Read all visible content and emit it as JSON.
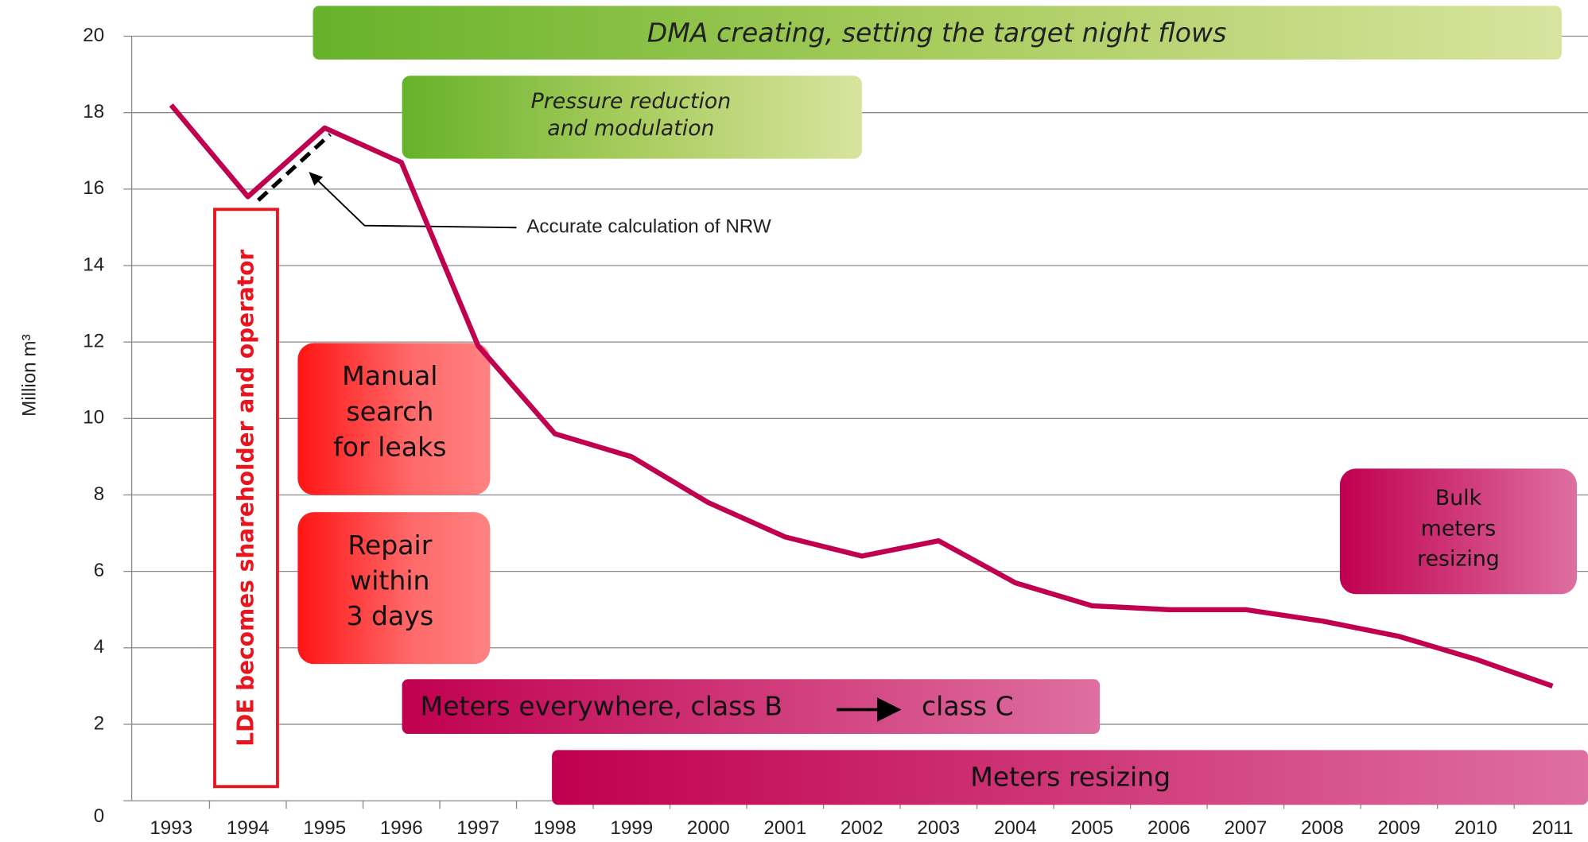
{
  "chart_data": {
    "type": "line",
    "y_axis_label": "Million m³",
    "categories": [
      "1993",
      "1994",
      "1995",
      "1996",
      "1997",
      "1998",
      "1999",
      "2000",
      "2001",
      "2002",
      "2003",
      "2004",
      "2005",
      "2006",
      "2007",
      "2008",
      "2009",
      "2010",
      "2011"
    ],
    "values": [
      18.2,
      15.8,
      17.6,
      16.7,
      11.9,
      9.6,
      9.0,
      7.8,
      6.9,
      6.4,
      6.8,
      5.7,
      5.1,
      5.0,
      5.0,
      4.7,
      4.3,
      3.7,
      3.0
    ],
    "color": "#c0004f",
    "ylim": [
      0,
      20
    ],
    "yticks": [
      0,
      2,
      4,
      6,
      8,
      10,
      12,
      14,
      16,
      18,
      20
    ],
    "grid": true,
    "annotations": {
      "dma": "DMA creating, setting the target night flows",
      "pressure": [
        "Pressure reduction",
        "and modulation"
      ],
      "manual": [
        "Manual",
        "search",
        "for leaks"
      ],
      "repair": [
        "Repair",
        "within",
        "3 days"
      ],
      "bulk": [
        "Bulk",
        "meters",
        "resizing"
      ],
      "meters_everywhere": [
        "Meters everywhere, class B",
        "class C"
      ],
      "meters_resizing": "Meters resizing",
      "lde": "LDE becomes shareholder and operator",
      "nrw": "Accurate calculation of NRW"
    }
  }
}
